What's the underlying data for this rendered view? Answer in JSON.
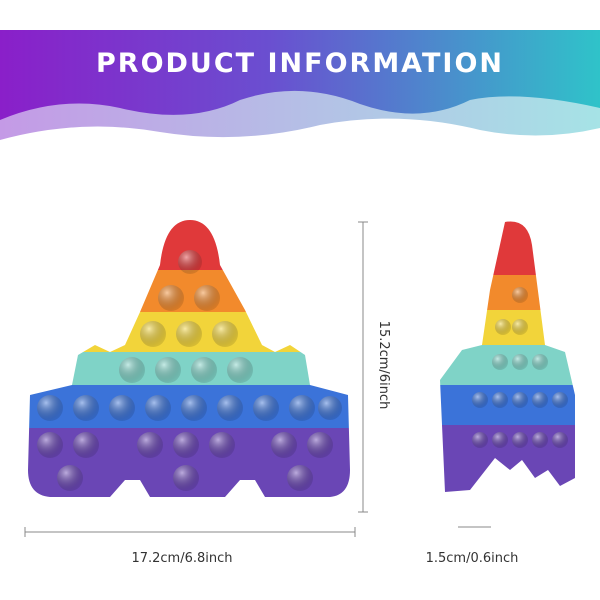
{
  "header": {
    "title": "PRODUCT INFORMATION"
  },
  "dimensions": {
    "width": "17.2cm/6.8inch",
    "height": "15.2cm/6inch",
    "thickness": "1.5cm/0.6inch"
  }
}
